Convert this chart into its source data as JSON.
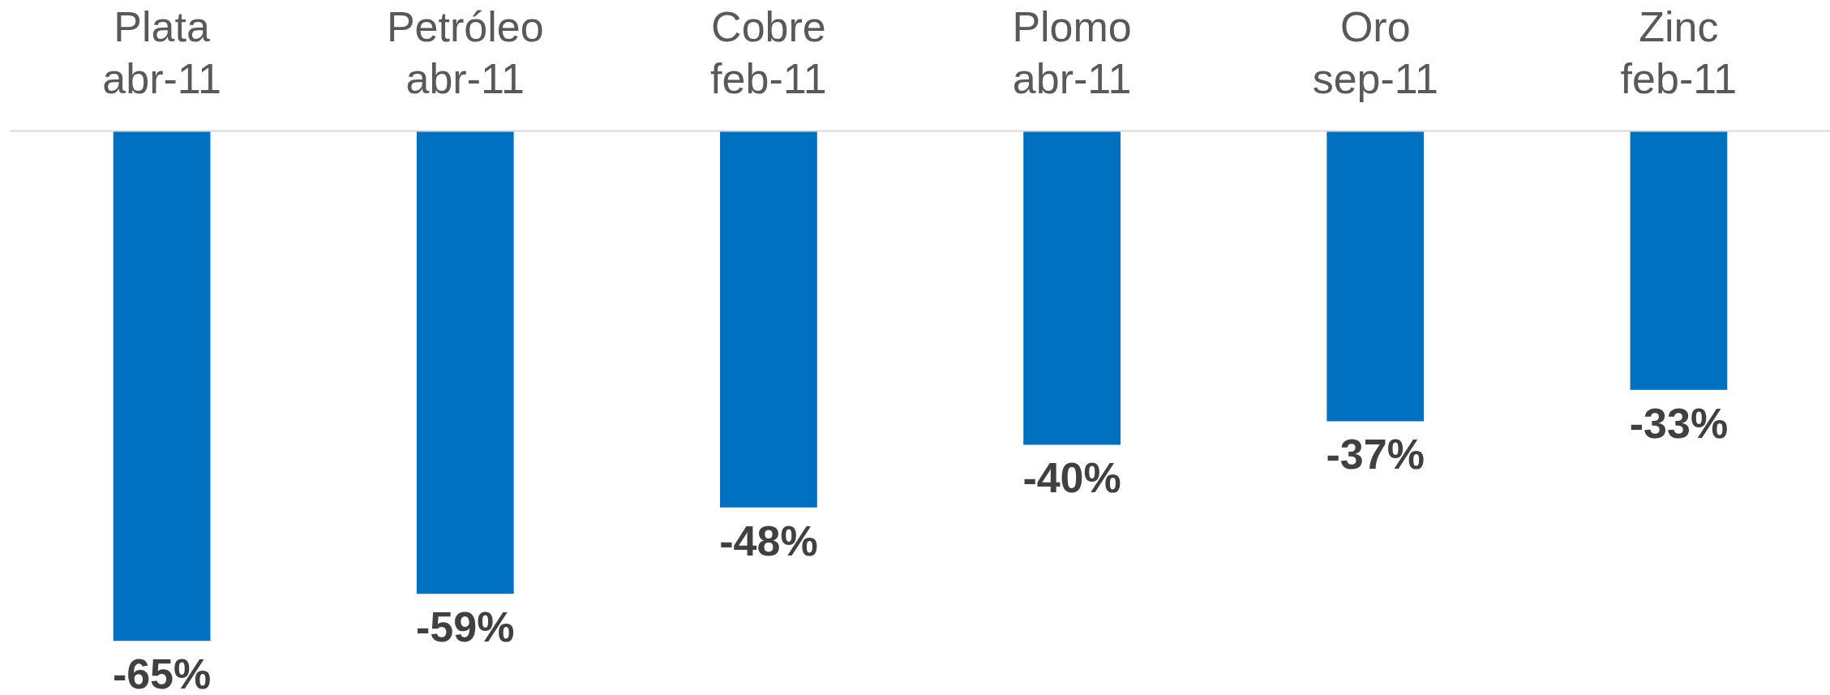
{
  "chart_data": {
    "type": "bar",
    "categories": [
      "Plata\nabr-11",
      "Petróleo\nabr-11",
      "Cobre\nfeb-11",
      "Plomo\nabr-11",
      "Oro\nsep-11",
      "Zinc\nfeb-11"
    ],
    "values": [
      -65,
      -59,
      -48,
      -40,
      -37,
      -33
    ],
    "color": "#0070c0",
    "value_labels": [
      "-65%",
      "-59%",
      "-48%",
      "-40%",
      "-37%",
      "-33%"
    ]
  }
}
